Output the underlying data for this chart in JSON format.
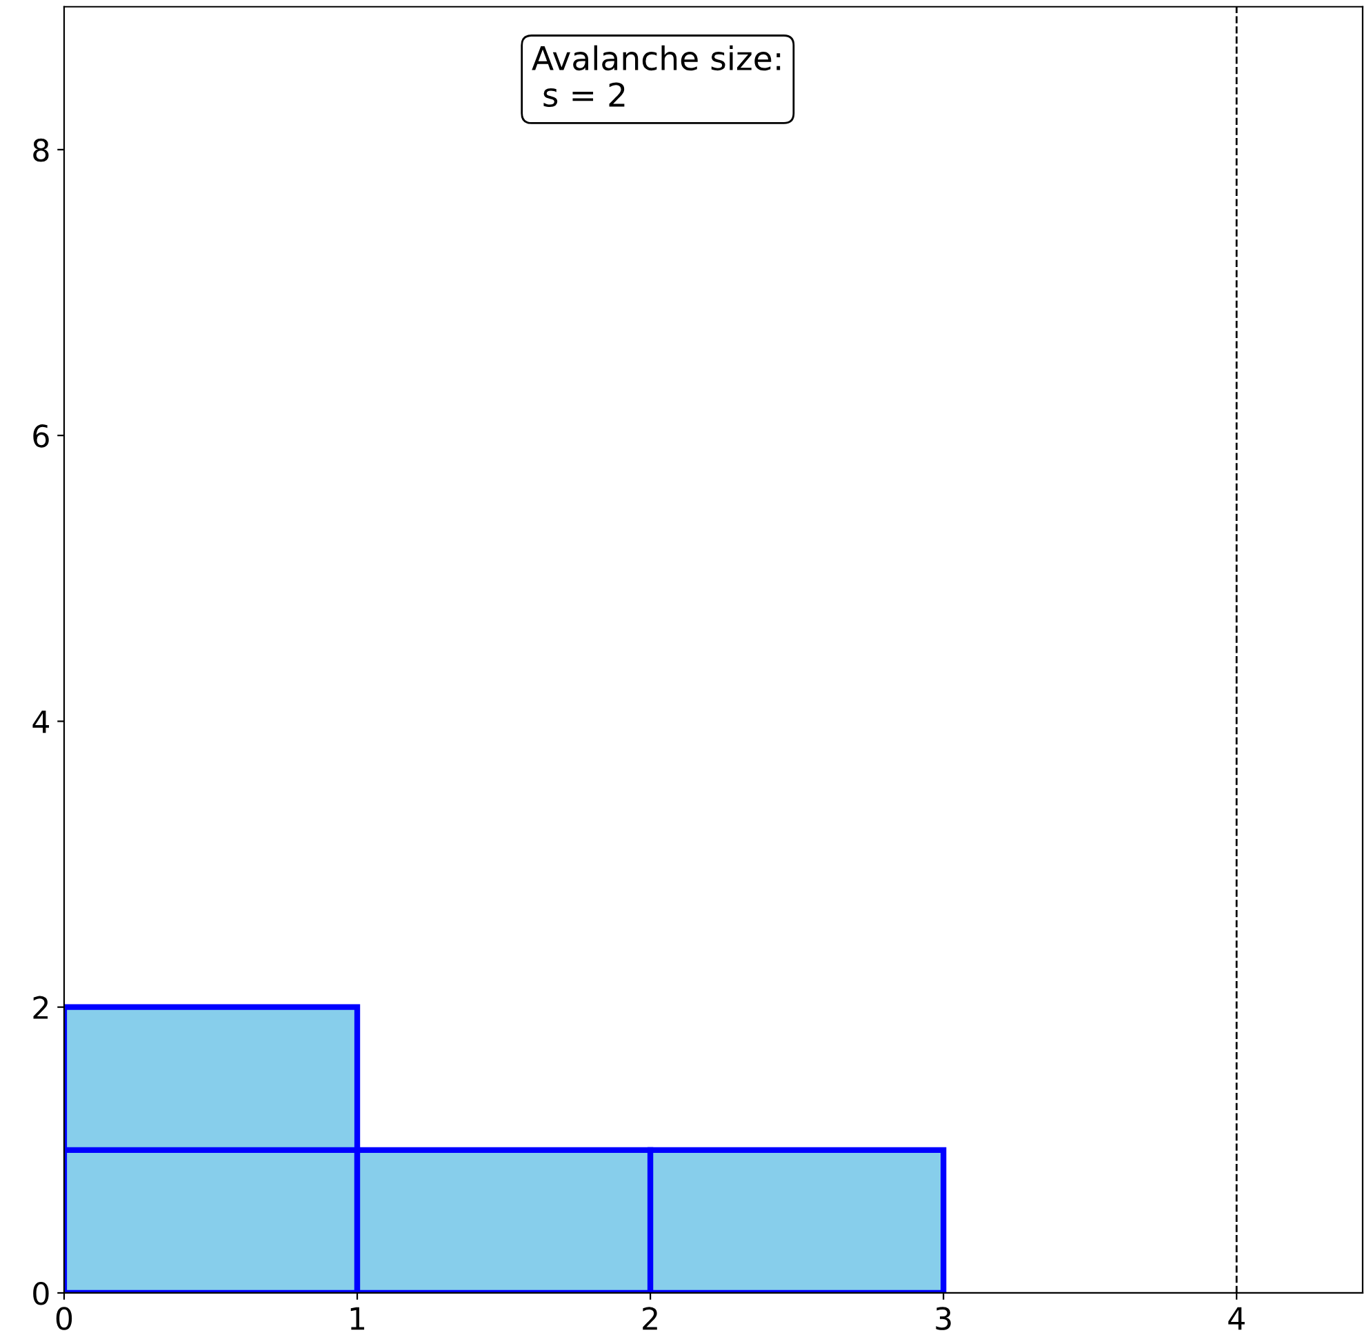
{
  "chart_data": {
    "type": "bar",
    "stacked": true,
    "x": [
      0.5,
      1.5,
      2.5
    ],
    "series": [
      {
        "color": "#87ceeb",
        "values": [
          1,
          1,
          1
        ]
      },
      {
        "color": "#87ceeb",
        "values": [
          1,
          null,
          null
        ]
      }
    ],
    "xlim": [
      0,
      4.43
    ],
    "xticks": [
      0,
      1,
      2,
      3,
      4
    ],
    "ylim": [
      0,
      9
    ],
    "yticks": [
      0,
      2,
      4,
      6,
      8
    ],
    "ref_lines": [
      {
        "axis": "x",
        "value": 4,
        "color": "#000000",
        "line_style": "dashed"
      }
    ],
    "annotations": [
      "Avalanche size:\n s = 2"
    ],
    "grid": false,
    "legend": false
  }
}
